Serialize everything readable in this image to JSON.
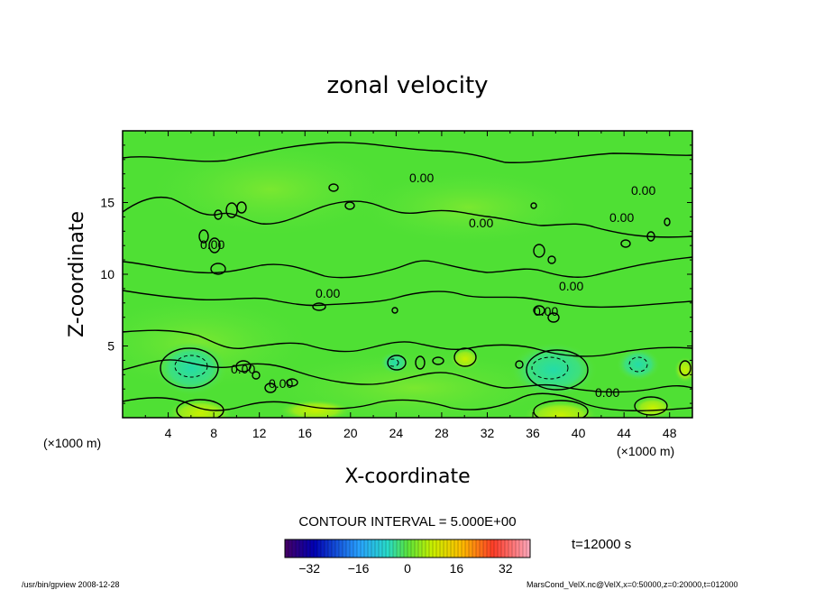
{
  "chart_data": {
    "type": "heatmap",
    "title": "zonal velocity",
    "xlabel": "X-coordinate",
    "ylabel": "Z-coordinate",
    "x_unit": "(×1000 m)",
    "y_unit": "(×1000 m)",
    "xlim": [
      0,
      50
    ],
    "ylim": [
      0,
      20
    ],
    "x_ticks": [
      4,
      8,
      12,
      16,
      20,
      24,
      28,
      32,
      36,
      40,
      44,
      48
    ],
    "y_ticks": [
      5,
      10,
      15
    ],
    "contour_interval_text": "CONTOUR INTERVAL = 5.000E+00",
    "contour_labels": [
      "0.00",
      "0.00",
      "0.00",
      "0.00",
      "0.00",
      "0.00",
      "0.00",
      "0.00",
      "0.00",
      "0.00",
      "0.00"
    ],
    "colorbar": {
      "min": -40,
      "max": 40,
      "ticks": [
        -32,
        -16,
        0,
        16,
        32
      ],
      "tick_labels": [
        "−32",
        "−16",
        "0",
        "16",
        "32"
      ]
    },
    "time_label": "t=12000 s",
    "footer_left": "/usr/bin/gpview  2008-12-28",
    "footer_right": "MarsCond_VelX.nc@VelX,x=0:50000,z=0:20000,t=012000"
  }
}
